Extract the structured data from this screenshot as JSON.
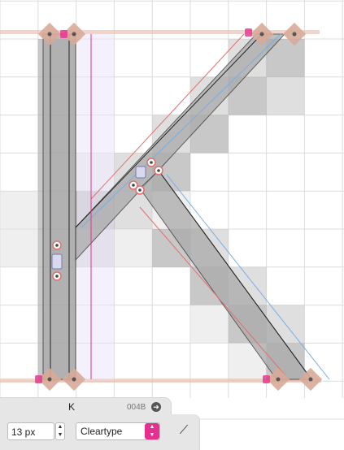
{
  "glyph": {
    "name": "K",
    "unicode": "004B",
    "goto_icon": "arrow-circle-right-icon"
  },
  "controls": {
    "size_value": "13 px",
    "render_mode": "Cleartype",
    "stepper_up": "▲",
    "stepper_down": "▼",
    "select_up": "▲",
    "select_down": "▼",
    "align_tool_icon": "hinting-tool-icon",
    "align_tool_glyph": "⟋",
    "goto_glyph": "➜"
  },
  "colors": {
    "outline_fill": "#aaaaaa",
    "pixel_dark": "#9a9a9a",
    "pixel_mid": "#c4c4c4",
    "pixel_light": "#e2e2e2",
    "grid": "#dcdcdc",
    "guide": "#e9b9a6",
    "node_diamond": "#d8aa98",
    "magenta_hint": "#e6308f",
    "blue_outline": "#78aee8",
    "red_outline": "#e07070"
  },
  "font_px_size": 13
}
